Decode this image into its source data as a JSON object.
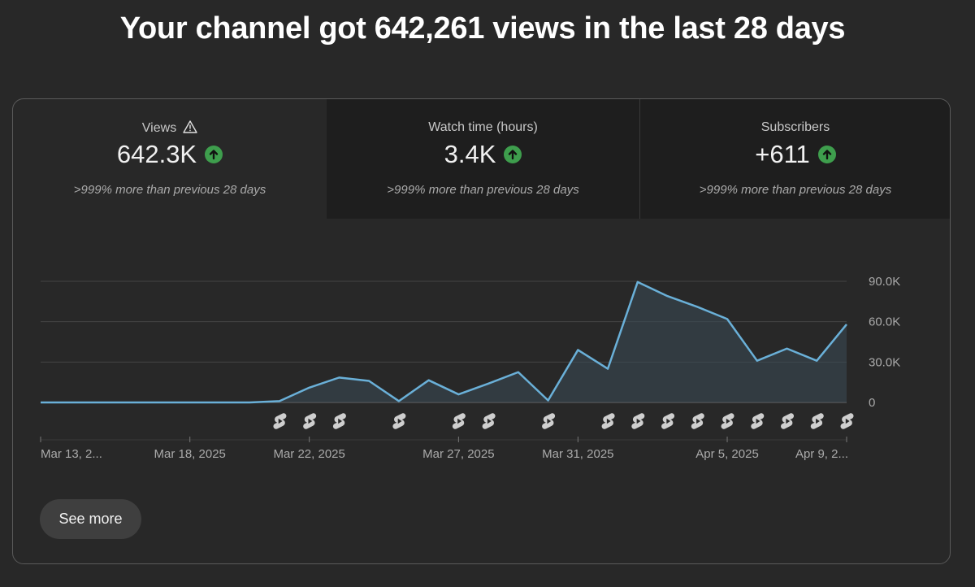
{
  "headline": "Your channel got 642,261 views in the last 28 days",
  "metrics": [
    {
      "label": "Views",
      "value": "642.3K",
      "comparison": ">999% more than previous 28 days",
      "selected": true,
      "has_warning": true
    },
    {
      "label": "Watch time (hours)",
      "value": "3.4K",
      "comparison": ">999% more than previous 28 days",
      "selected": false,
      "has_warning": false
    },
    {
      "label": "Subscribers",
      "value": "+611",
      "comparison": ">999% more than previous 28 days",
      "selected": false,
      "has_warning": false
    }
  ],
  "see_more_label": "See more",
  "colors": {
    "line": "#6ab0d8",
    "area": "#3a4a55",
    "up": "#3e9e4d"
  },
  "chart_data": {
    "type": "area",
    "title": "Views",
    "ylim": [
      0,
      90000
    ],
    "y_ticks": [
      0,
      30000,
      60000,
      90000
    ],
    "y_tick_labels": [
      "0",
      "30.0K",
      "60.0K",
      "90.0K"
    ],
    "x_tick_labels": [
      {
        "label": "Mar 13, 2...",
        "index": 0
      },
      {
        "label": "Mar 18, 2025",
        "index": 5
      },
      {
        "label": "Mar 22, 2025",
        "index": 9
      },
      {
        "label": "Mar 27, 2025",
        "index": 14
      },
      {
        "label": "Mar 31, 2025",
        "index": 18
      },
      {
        "label": "Apr 5, 2025",
        "index": 23
      },
      {
        "label": "Apr 9, 2...",
        "index": 27
      }
    ],
    "x": [
      "Mar 13",
      "Mar 14",
      "Mar 15",
      "Mar 16",
      "Mar 17",
      "Mar 18",
      "Mar 19",
      "Mar 20",
      "Mar 21",
      "Mar 22",
      "Mar 23",
      "Mar 24",
      "Mar 25",
      "Mar 26",
      "Mar 27",
      "Mar 28",
      "Mar 29",
      "Mar 30",
      "Mar 31",
      "Apr 1",
      "Apr 2",
      "Apr 3",
      "Apr 4",
      "Apr 5",
      "Apr 6",
      "Apr 7",
      "Apr 8",
      "Apr 9"
    ],
    "series": [
      {
        "name": "Views",
        "values": [
          0,
          0,
          0,
          0,
          0,
          0,
          0,
          0,
          1000,
          11000,
          18500,
          16000,
          1000,
          16500,
          6000,
          14000,
          22500,
          1500,
          39000,
          25000,
          89500,
          79000,
          71000,
          62000,
          31000,
          40000,
          31000,
          58000
        ]
      }
    ],
    "shorts_marker_indices": [
      8,
      9,
      10,
      12,
      14,
      15,
      17,
      19,
      20,
      21,
      22,
      23,
      24,
      25,
      26,
      27
    ]
  }
}
